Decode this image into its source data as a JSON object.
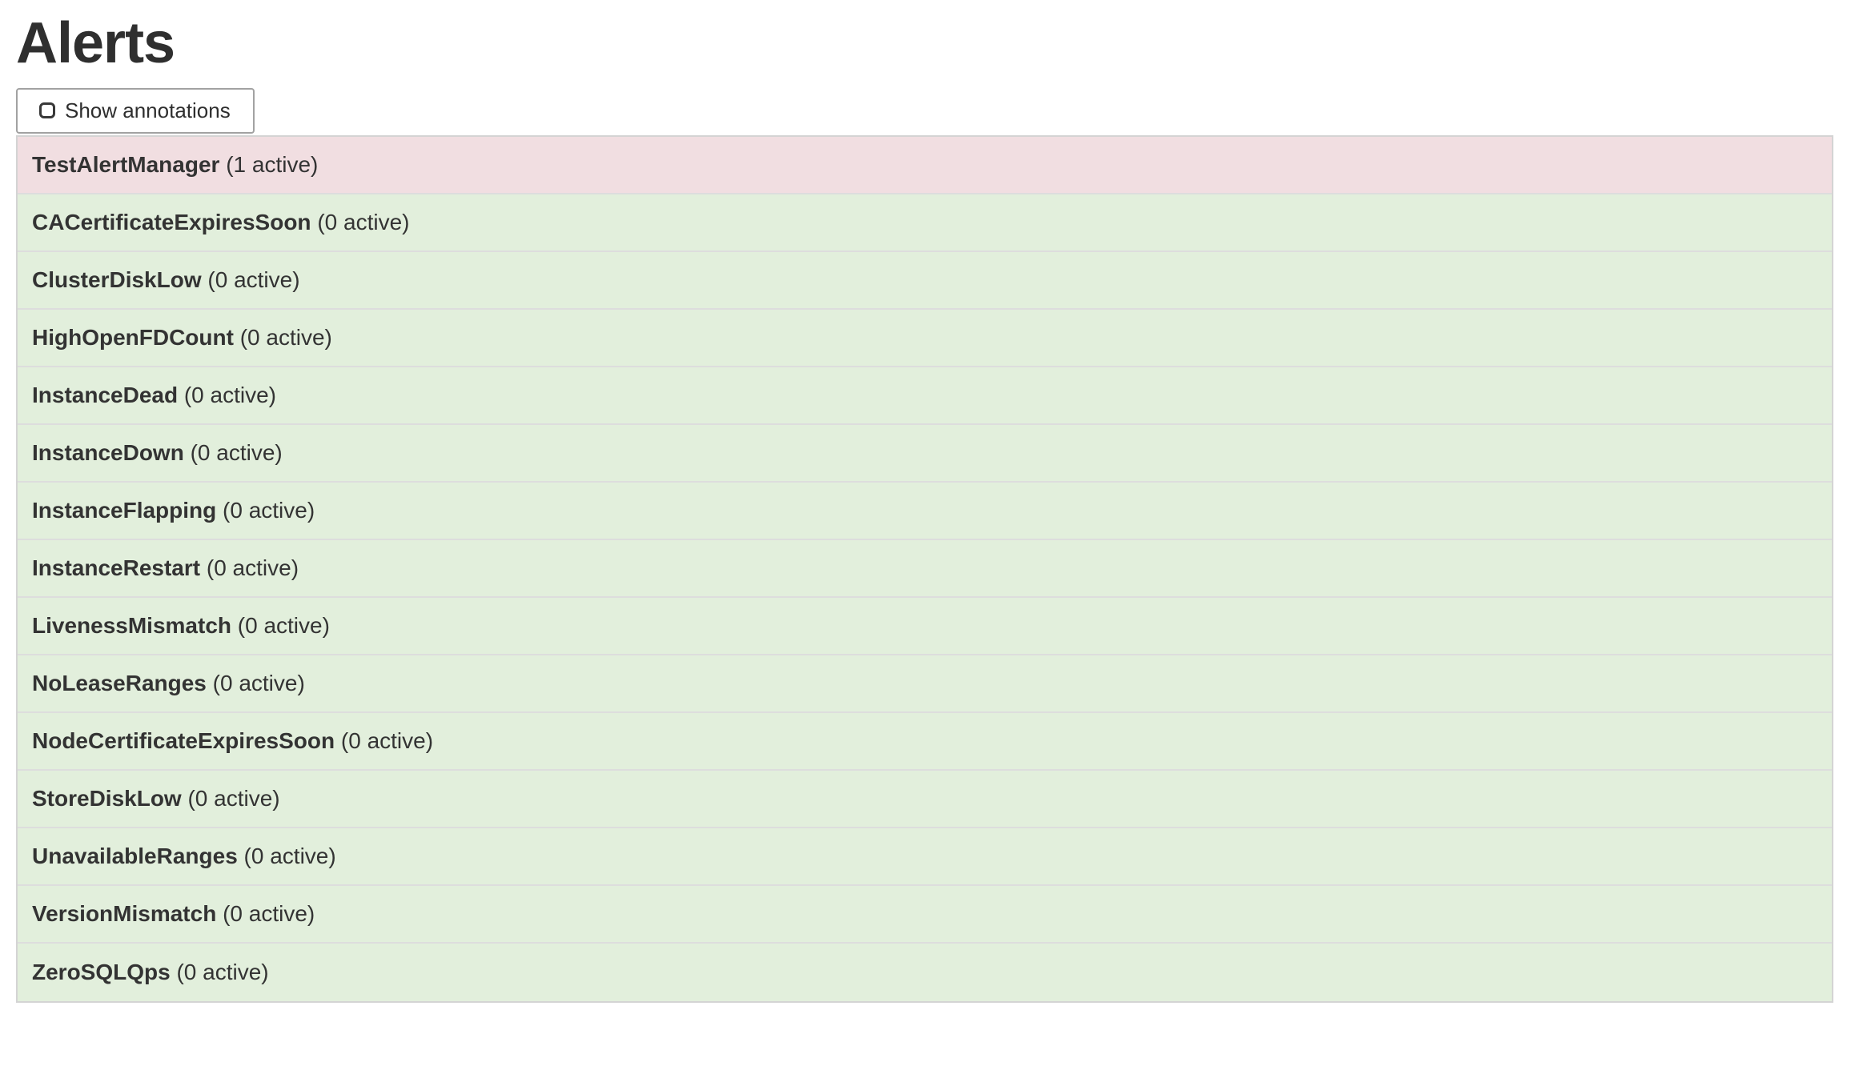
{
  "page": {
    "title": "Alerts"
  },
  "controls": {
    "show_annotations_label": "Show annotations",
    "show_annotations_checked": false
  },
  "colors": {
    "firing_bg": "#f1dee1",
    "inactive_bg": "#e2efdc",
    "row_border": "#dddddd",
    "outer_border": "#d4d4d4",
    "button_border": "#a2a2a2",
    "text": "#333333"
  },
  "alerts": [
    {
      "name": "TestAlertManager",
      "active": 1,
      "count_label": "(1 active)",
      "state": "firing"
    },
    {
      "name": "CACertificateExpiresSoon",
      "active": 0,
      "count_label": "(0 active)",
      "state": "inactive"
    },
    {
      "name": "ClusterDiskLow",
      "active": 0,
      "count_label": "(0 active)",
      "state": "inactive"
    },
    {
      "name": "HighOpenFDCount",
      "active": 0,
      "count_label": "(0 active)",
      "state": "inactive"
    },
    {
      "name": "InstanceDead",
      "active": 0,
      "count_label": "(0 active)",
      "state": "inactive"
    },
    {
      "name": "InstanceDown",
      "active": 0,
      "count_label": "(0 active)",
      "state": "inactive"
    },
    {
      "name": "InstanceFlapping",
      "active": 0,
      "count_label": "(0 active)",
      "state": "inactive"
    },
    {
      "name": "InstanceRestart",
      "active": 0,
      "count_label": "(0 active)",
      "state": "inactive"
    },
    {
      "name": "LivenessMismatch",
      "active": 0,
      "count_label": "(0 active)",
      "state": "inactive"
    },
    {
      "name": "NoLeaseRanges",
      "active": 0,
      "count_label": "(0 active)",
      "state": "inactive"
    },
    {
      "name": "NodeCertificateExpiresSoon",
      "active": 0,
      "count_label": "(0 active)",
      "state": "inactive"
    },
    {
      "name": "StoreDiskLow",
      "active": 0,
      "count_label": "(0 active)",
      "state": "inactive"
    },
    {
      "name": "UnavailableRanges",
      "active": 0,
      "count_label": "(0 active)",
      "state": "inactive"
    },
    {
      "name": "VersionMismatch",
      "active": 0,
      "count_label": "(0 active)",
      "state": "inactive"
    },
    {
      "name": "ZeroSQLQps",
      "active": 0,
      "count_label": "(0 active)",
      "state": "inactive"
    }
  ]
}
